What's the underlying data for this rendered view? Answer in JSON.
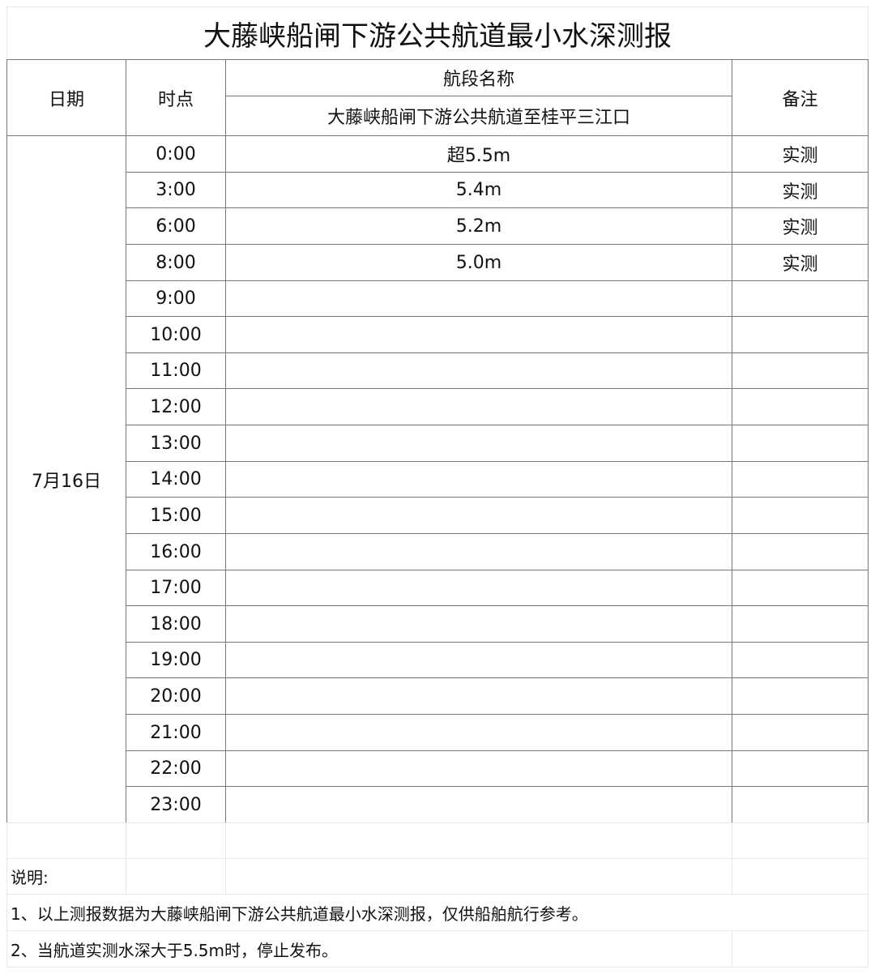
{
  "title": "大藤峡船闸下游公共航道最小水深测报",
  "header": {
    "date": "日期",
    "time": "时点",
    "segment_group": "航段名称",
    "segment": "大藤峡船闸下游公共航道至桂平三江口",
    "remark": "备注"
  },
  "date_value": "7月16日",
  "rows": [
    {
      "time": "0:00",
      "depth": "超5.5m",
      "remark": "实测"
    },
    {
      "time": "3:00",
      "depth": "5.4m",
      "remark": "实测"
    },
    {
      "time": "6:00",
      "depth": "5.2m",
      "remark": "实测"
    },
    {
      "time": "8:00",
      "depth": "5.0m",
      "remark": "实测"
    },
    {
      "time": "9:00",
      "depth": "",
      "remark": ""
    },
    {
      "time": "10:00",
      "depth": "",
      "remark": ""
    },
    {
      "time": "11:00",
      "depth": "",
      "remark": ""
    },
    {
      "time": "12:00",
      "depth": "",
      "remark": ""
    },
    {
      "time": "13:00",
      "depth": "",
      "remark": ""
    },
    {
      "time": "14:00",
      "depth": "",
      "remark": ""
    },
    {
      "time": "15:00",
      "depth": "",
      "remark": ""
    },
    {
      "time": "16:00",
      "depth": "",
      "remark": ""
    },
    {
      "time": "17:00",
      "depth": "",
      "remark": ""
    },
    {
      "time": "18:00",
      "depth": "",
      "remark": ""
    },
    {
      "time": "19:00",
      "depth": "",
      "remark": ""
    },
    {
      "time": "20:00",
      "depth": "",
      "remark": ""
    },
    {
      "time": "21:00",
      "depth": "",
      "remark": ""
    },
    {
      "time": "22:00",
      "depth": "",
      "remark": ""
    },
    {
      "time": "23:00",
      "depth": "",
      "remark": ""
    }
  ],
  "notes": {
    "heading": "说明:",
    "line1": "1、以上测报数据为大藤峡船闸下游公共航道最小水深测报，仅供船舶航行参考。",
    "line2": "2、当航道实测水深大于5.5m时，停止发布。"
  }
}
